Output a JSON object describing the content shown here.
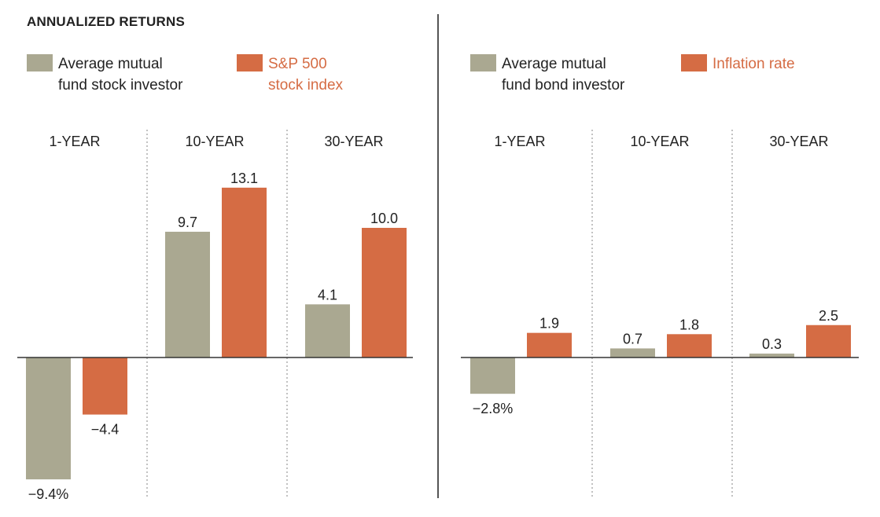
{
  "title": "ANNUALIZED RETURNS",
  "colors": {
    "investor": "#aaa891",
    "benchmark": "#d56c44",
    "benchmark_text": "#d56c44",
    "text": "#222222"
  },
  "legend": {
    "left": {
      "investor": {
        "line1": "Average mutual",
        "line2": "fund stock investor"
      },
      "benchmark": {
        "line1": "S&P 500",
        "line2": "stock index"
      }
    },
    "right": {
      "investor": {
        "line1": "Average mutual",
        "line2": "fund bond investor"
      },
      "benchmark": {
        "line1": "Inflation rate"
      }
    }
  },
  "chart_data": [
    {
      "type": "bar",
      "title": "ANNUALIZED RETURNS",
      "categories": [
        "1-YEAR",
        "10-YEAR",
        "30-YEAR"
      ],
      "series": [
        {
          "name": "Average mutual fund stock investor",
          "values": [
            -9.4,
            9.7,
            4.1
          ],
          "labels": [
            "−9.4%",
            "9.7",
            "4.1"
          ]
        },
        {
          "name": "S&P 500 stock index",
          "values": [
            -4.4,
            13.1,
            10.0
          ],
          "labels": [
            "−4.4",
            "13.1",
            "10.0"
          ]
        }
      ],
      "ylim": [
        -10,
        14
      ],
      "xlabel": "",
      "ylabel": ""
    },
    {
      "type": "bar",
      "categories": [
        "1-YEAR",
        "10-YEAR",
        "30-YEAR"
      ],
      "series": [
        {
          "name": "Average mutual fund bond investor",
          "values": [
            -2.8,
            0.7,
            0.3
          ],
          "labels": [
            "−2.8%",
            "0.7",
            "0.3"
          ]
        },
        {
          "name": "Inflation rate",
          "values": [
            1.9,
            1.8,
            2.5
          ],
          "labels": [
            "1.9",
            "1.8",
            "2.5"
          ]
        }
      ],
      "ylim": [
        -10,
        14
      ],
      "xlabel": "",
      "ylabel": ""
    }
  ]
}
